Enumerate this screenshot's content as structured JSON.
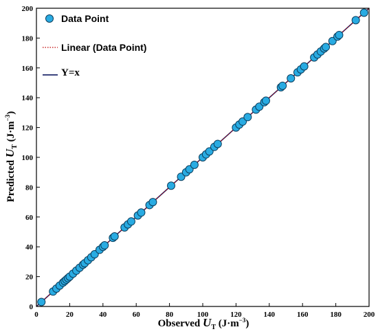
{
  "chart_data": {
    "type": "scatter",
    "xlabel": {
      "prefix": "Observed ",
      "symbol": "U",
      "subscript": "T",
      "unit": " (J·m",
      "exp": "−3",
      "close": ")"
    },
    "ylabel": {
      "prefix": "Predicted ",
      "symbol": "U",
      "subscript": "T",
      "unit": " (J·m",
      "exp": "−3",
      "close": ")"
    },
    "xlim": [
      0,
      200
    ],
    "ylim": [
      0,
      200
    ],
    "xticks": [
      0,
      20,
      40,
      60,
      80,
      100,
      120,
      140,
      160,
      180,
      200
    ],
    "yticks": [
      0,
      20,
      40,
      60,
      80,
      100,
      120,
      140,
      160,
      180,
      200
    ],
    "grid": false,
    "legend_position": "top-left",
    "legend": [
      {
        "label": "Data Point",
        "kind": "marker",
        "color": "#29abe2"
      },
      {
        "label": "Linear (Data Point)",
        "kind": "dotted-line",
        "color": "#c00000"
      },
      {
        "label": "Y=x",
        "kind": "line",
        "color": "#1f2a6b"
      }
    ],
    "series": [
      {
        "name": "Data Point",
        "x": [
          3,
          10,
          12,
          14,
          16,
          17,
          18,
          19,
          20,
          22,
          24,
          26,
          28,
          29,
          31,
          33,
          35,
          38,
          40,
          41,
          46,
          47,
          53,
          55,
          57,
          61,
          63,
          68,
          70,
          81,
          87,
          90,
          92,
          95,
          100,
          102,
          104,
          107,
          109,
          120,
          122,
          124,
          127,
          132,
          134,
          137,
          138,
          147,
          148,
          153,
          157,
          159,
          161,
          167,
          169,
          171,
          173,
          174,
          178,
          181,
          182,
          192,
          197
        ],
        "y": [
          3,
          10,
          12,
          14,
          16,
          17,
          18,
          19,
          20,
          22,
          24,
          26,
          28,
          29,
          31,
          33,
          35,
          38,
          40,
          41,
          46,
          47,
          53,
          55,
          57,
          61,
          63,
          68,
          70,
          81,
          87,
          90,
          92,
          95,
          100,
          102,
          104,
          107,
          109,
          120,
          122,
          124,
          127,
          132,
          134,
          137,
          138,
          147,
          148,
          153,
          157,
          159,
          161,
          167,
          169,
          171,
          173,
          174,
          178,
          181,
          182,
          192,
          197
        ]
      },
      {
        "name": "Linear (Data Point)",
        "x": [
          0,
          200
        ],
        "y": [
          0,
          200
        ]
      },
      {
        "name": "Y=x",
        "x": [
          0,
          200
        ],
        "y": [
          0,
          200
        ]
      }
    ]
  }
}
